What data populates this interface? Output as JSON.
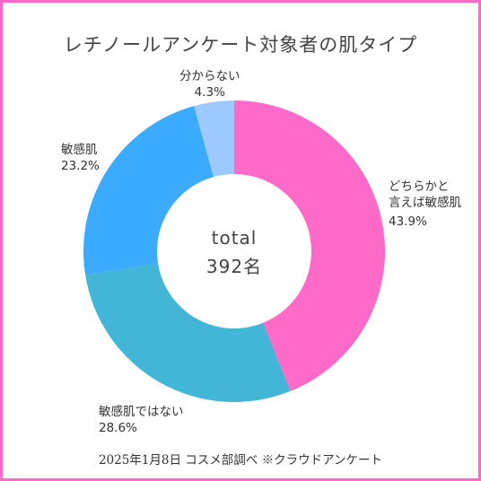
{
  "chart_data": {
    "type": "pie",
    "title": "レチノールアンケート対象者の肌タイプ",
    "center_label": [
      "total",
      "392名"
    ],
    "slices": [
      {
        "label": "どちらかと言えば敏感肌",
        "label_lines": [
          "どちらかと",
          "言えば敏感肌"
        ],
        "pct_text": "43.9%",
        "value": 43.9,
        "color": "#ff69c8"
      },
      {
        "label": "敏感肌ではない",
        "label_lines": [
          "敏感肌ではない"
        ],
        "pct_text": "28.6%",
        "value": 28.6,
        "color": "#41b6d6"
      },
      {
        "label": "敏感肌",
        "label_lines": [
          "敏感肌"
        ],
        "pct_text": "23.2%",
        "value": 23.2,
        "color": "#3aabff"
      },
      {
        "label": "分からない",
        "label_lines": [
          "分からない"
        ],
        "pct_text": "4.3%",
        "value": 4.3,
        "color": "#9cc9ff"
      }
    ],
    "footer": "2025年1月8日 コスメ部調べ ※クラウドアンケート"
  },
  "colors": {
    "frame": "#ff69c8",
    "background": "#ffffff"
  }
}
